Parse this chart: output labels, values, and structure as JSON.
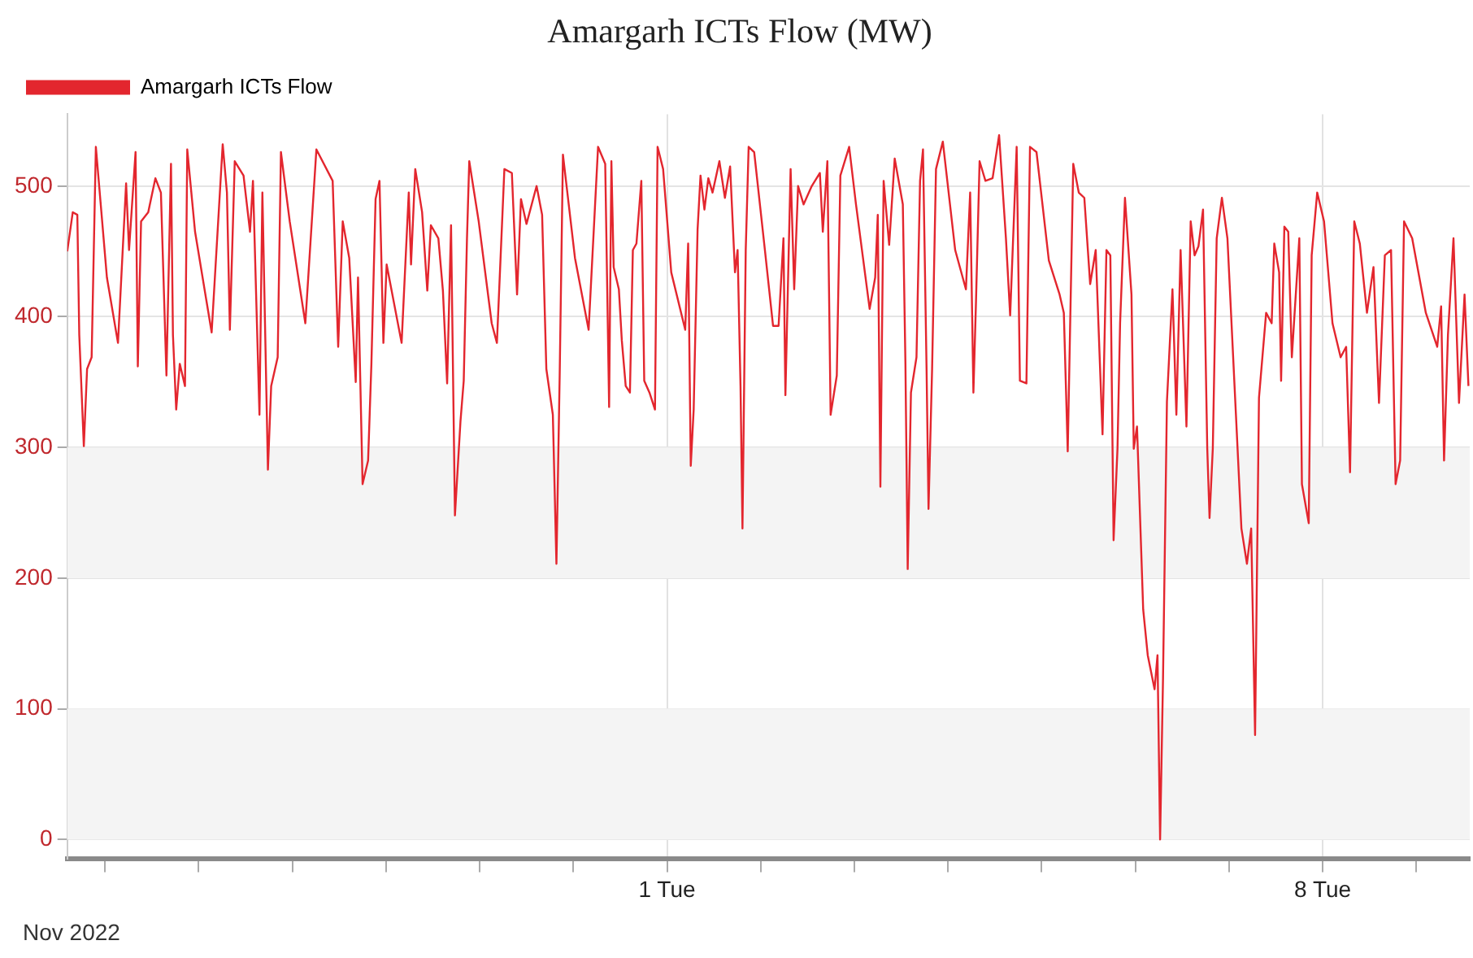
{
  "chart_data": {
    "type": "line",
    "title": "Amargarh ICTs Flow (MW)",
    "legend": "top left",
    "grid": true,
    "marker": "none",
    "line_style": "solid",
    "annotations": [
      "Nov 2022"
    ],
    "ylim": [
      -15,
      555
    ],
    "yticks": [
      0,
      100,
      200,
      300,
      400,
      500
    ],
    "xlim": [
      "2022-10-25T14:20",
      "2022-11-09T13:40"
    ],
    "xticks": [
      {
        "value": "2022-10-26",
        "label": null
      },
      {
        "value": "2022-10-27",
        "label": null
      },
      {
        "value": "2022-10-28",
        "label": null
      },
      {
        "value": "2022-10-29",
        "label": null
      },
      {
        "value": "2022-10-30",
        "label": null
      },
      {
        "value": "2022-10-31",
        "label": null
      },
      {
        "value": "2022-11-01",
        "label": "1 Tue"
      },
      {
        "value": "2022-11-02",
        "label": null
      },
      {
        "value": "2022-11-03",
        "label": null
      },
      {
        "value": "2022-11-04",
        "label": null
      },
      {
        "value": "2022-11-05",
        "label": null
      },
      {
        "value": "2022-11-06",
        "label": null
      },
      {
        "value": "2022-11-07",
        "label": null
      },
      {
        "value": "2022-11-08",
        "label": "8 Tue"
      },
      {
        "value": "2022-11-09",
        "label": null
      }
    ],
    "bands": [
      {
        "axis": "y",
        "from": 0,
        "to": 100,
        "color": "#f4f4f4"
      },
      {
        "axis": "y",
        "from": 200,
        "to": 300,
        "color": "#f4f4f4"
      }
    ],
    "series": [
      {
        "name": "Amargarh ICTs Flow",
        "color": "#e3262e",
        "x": [
          "2022-10-25T14:20",
          "2022-10-25T15:45",
          "2022-10-25T16:55",
          "2022-10-25T17:25",
          "2022-10-25T18:35",
          "2022-10-25T19:25",
          "2022-10-25T20:35",
          "2022-10-25T21:40",
          "2022-10-26T00:30",
          "2022-10-26T03:20",
          "2022-10-26T05:25",
          "2022-10-26T06:10",
          "2022-10-26T07:50",
          "2022-10-26T08:25",
          "2022-10-26T09:15",
          "2022-10-26T11:05",
          "2022-10-26T12:55",
          "2022-10-26T14:20",
          "2022-10-26T15:45",
          "2022-10-26T16:55",
          "2022-10-26T17:25",
          "2022-10-26T18:15",
          "2022-10-26T19:10",
          "2022-10-26T20:30",
          "2022-10-26T21:05",
          "2022-10-26T23:05",
          "2022-10-27T03:20",
          "2022-10-27T06:10",
          "2022-10-27T07:15",
          "2022-10-27T08:00",
          "2022-10-27T09:15",
          "2022-10-27T11:30",
          "2022-10-27T13:10",
          "2022-10-27T13:55",
          "2022-10-27T15:35",
          "2022-10-27T16:20",
          "2022-10-27T17:45",
          "2022-10-27T18:35",
          "2022-10-27T20:15",
          "2022-10-27T21:05",
          "2022-10-27T23:20",
          "2022-10-28T03:20",
          "2022-10-28T06:10",
          "2022-10-28T10:20",
          "2022-10-28T11:45",
          "2022-10-28T12:55",
          "2022-10-28T14:35",
          "2022-10-28T16:15",
          "2022-10-28T16:50",
          "2022-10-28T18:00",
          "2022-10-28T19:25",
          "2022-10-28T20:15",
          "2022-10-28T21:20",
          "2022-10-28T22:20",
          "2022-10-28T23:20",
          "2022-10-29T00:10",
          "2022-10-29T04:00",
          "2022-10-29T05:50",
          "2022-10-29T06:25",
          "2022-10-29T07:30",
          "2022-10-29T09:15",
          "2022-10-29T10:35",
          "2022-10-29T11:30",
          "2022-10-29T13:25",
          "2022-10-29T14:35",
          "2022-10-29T15:40",
          "2022-10-29T16:40",
          "2022-10-29T17:40",
          "2022-10-29T19:05",
          "2022-10-29T19:55",
          "2022-10-29T20:45",
          "2022-10-29T21:20",
          "2022-10-29T23:45",
          "2022-10-30T03:05",
          "2022-10-30T04:25",
          "2022-10-30T06:20",
          "2022-10-30T08:15",
          "2022-10-30T09:35",
          "2022-10-30T10:35",
          "2022-10-30T12:00",
          "2022-10-30T14:35",
          "2022-10-30T16:00",
          "2022-10-30T17:05",
          "2022-10-30T18:45",
          "2022-10-30T19:40",
          "2022-10-30T20:30",
          "2022-10-30T21:20",
          "2022-10-31T00:25",
          "2022-10-31T03:55",
          "2022-10-31T06:20",
          "2022-10-31T08:10",
          "2022-10-31T09:10",
          "2022-10-31T09:45",
          "2022-10-31T10:20",
          "2022-10-31T11:40",
          "2022-10-31T12:25",
          "2022-10-31T13:25",
          "2022-10-31T14:30",
          "2022-10-31T15:15",
          "2022-10-31T16:10",
          "2022-10-31T17:25",
          "2022-10-31T18:10",
          "2022-10-31T19:30",
          "2022-10-31T20:55",
          "2022-10-31T21:35",
          "2022-10-31T23:00",
          "2022-11-01T01:05",
          "2022-11-01T04:40",
          "2022-11-01T05:25",
          "2022-11-01T06:05",
          "2022-11-01T06:50",
          "2022-11-01T07:50",
          "2022-11-01T08:35",
          "2022-11-01T09:35",
          "2022-11-01T10:35",
          "2022-11-01T11:40",
          "2022-11-01T13:25",
          "2022-11-01T14:50",
          "2022-11-01T16:10",
          "2022-11-01T17:25",
          "2022-11-01T18:05",
          "2022-11-01T18:50",
          "2022-11-01T19:20",
          "2022-11-01T20:10",
          "2022-11-01T20:55",
          "2022-11-01T22:20",
          "2022-11-02T01:05",
          "2022-11-02T03:10",
          "2022-11-02T04:35",
          "2022-11-02T05:50",
          "2022-11-02T06:20",
          "2022-11-02T07:40",
          "2022-11-02T08:35",
          "2022-11-02T09:35",
          "2022-11-02T11:00",
          "2022-11-02T13:05",
          "2022-11-02T15:10",
          "2022-11-02T15:55",
          "2022-11-02T17:05",
          "2022-11-02T17:55",
          "2022-11-02T19:30",
          "2022-11-02T20:25",
          "2022-11-02T22:40",
          "2022-11-03T00:25",
          "2022-11-03T03:55",
          "2022-11-03T05:20",
          "2022-11-03T06:00",
          "2022-11-03T06:40",
          "2022-11-03T07:30",
          "2022-11-03T08:55",
          "2022-11-03T10:20",
          "2022-11-03T12:25",
          "2022-11-03T13:05",
          "2022-11-03T13:40",
          "2022-11-03T14:30",
          "2022-11-03T15:55",
          "2022-11-03T16:50",
          "2022-11-03T17:35",
          "2022-11-03T18:30",
          "2022-11-03T19:00",
          "2022-11-03T19:55",
          "2022-11-03T20:55",
          "2022-11-03T22:40",
          "2022-11-04T01:50",
          "2022-11-04T04:35",
          "2022-11-04T05:40",
          "2022-11-04T06:30",
          "2022-11-04T07:10",
          "2022-11-04T08:05",
          "2022-11-04T09:35",
          "2022-11-04T11:25",
          "2022-11-04T13:05",
          "2022-11-04T14:50",
          "2022-11-04T15:55",
          "2022-11-04T17:35",
          "2022-11-04T18:25",
          "2022-11-04T20:05",
          "2022-11-04T21:00",
          "2022-11-04T22:40",
          "2022-11-05T01:50",
          "2022-11-05T04:35",
          "2022-11-05T05:40",
          "2022-11-05T06:40",
          "2022-11-05T08:05",
          "2022-11-05T09:30",
          "2022-11-05T10:55",
          "2022-11-05T12:25",
          "2022-11-05T13:50",
          "2022-11-05T15:35",
          "2022-11-05T16:35",
          "2022-11-05T17:35",
          "2022-11-05T18:25",
          "2022-11-05T19:25",
          "2022-11-05T20:05",
          "2022-11-05T21:20",
          "2022-11-05T23:00",
          "2022-11-05T23:35",
          "2022-11-06T00:25",
          "2022-11-06T02:00",
          "2022-11-06T03:10",
          "2022-11-06T04:55",
          "2022-11-06T05:40",
          "2022-11-06T06:20",
          "2022-11-06T07:05",
          "2022-11-06T08:05",
          "2022-11-06T09:30",
          "2022-11-06T10:30",
          "2022-11-06T11:35",
          "2022-11-06T13:05",
          "2022-11-06T14:10",
          "2022-11-06T15:10",
          "2022-11-06T16:10",
          "2022-11-06T17:20",
          "2022-11-06T18:25",
          "2022-11-06T19:00",
          "2022-11-06T19:50",
          "2022-11-06T20:50",
          "2022-11-06T22:10",
          "2022-11-06T23:35",
          "2022-11-07T03:10",
          "2022-11-07T04:35",
          "2022-11-07T05:40",
          "2022-11-07T06:40",
          "2022-11-07T07:40",
          "2022-11-07T09:30",
          "2022-11-07T10:55",
          "2022-11-07T11:35",
          "2022-11-07T12:50",
          "2022-11-07T13:20",
          "2022-11-07T14:10",
          "2022-11-07T15:10",
          "2022-11-07T16:05",
          "2022-11-07T18:00",
          "2022-11-07T18:40",
          "2022-11-07T20:25",
          "2022-11-07T21:10",
          "2022-11-07T22:35",
          "2022-11-08T00:20",
          "2022-11-08T02:30",
          "2022-11-08T04:35",
          "2022-11-08T06:00",
          "2022-11-08T07:00",
          "2022-11-08T08:05",
          "2022-11-08T09:30",
          "2022-11-08T11:20",
          "2022-11-08T13:00",
          "2022-11-08T14:25",
          "2022-11-08T15:55",
          "2022-11-08T17:30",
          "2022-11-08T18:40",
          "2022-11-08T19:50",
          "2022-11-08T20:50",
          "2022-11-08T22:55",
          "2022-11-09T02:25",
          "2022-11-09T05:20",
          "2022-11-09T06:20",
          "2022-11-09T07:05",
          "2022-11-09T08:05",
          "2022-11-09T09:30",
          "2022-11-09T10:55",
          "2022-11-09T12:20",
          "2022-11-09T13:20"
        ],
        "values": [
          450,
          480,
          478,
          386,
          301,
          360,
          369,
          530,
          430,
          380,
          502,
          451,
          526,
          362,
          473,
          480,
          506,
          495,
          355,
          517,
          386,
          329,
          364,
          347,
          528,
          465,
          388,
          532,
          495,
          390,
          519,
          508,
          465,
          504,
          325,
          495,
          283,
          347,
          369,
          526,
          473,
          395,
          528,
          504,
          377,
          473,
          445,
          350,
          430,
          272,
          290,
          363,
          490,
          504,
          380,
          440,
          380,
          495,
          440,
          513,
          480,
          420,
          470,
          460,
          420,
          349,
          470,
          248,
          320,
          351,
          460,
          519,
          473,
          395,
          380,
          513,
          510,
          417,
          490,
          471,
          500,
          478,
          360,
          325,
          211,
          355,
          524,
          445,
          390,
          530,
          517,
          331,
          519,
          438,
          421,
          382,
          347,
          342,
          451,
          456,
          504,
          351,
          342,
          329,
          530,
          513,
          434,
          390,
          456,
          286,
          329,
          467,
          508,
          482,
          506,
          495,
          519,
          491,
          515,
          434,
          451,
          347,
          238,
          451,
          530,
          526,
          451,
          393,
          393,
          460,
          340,
          513,
          421,
          500,
          486,
          500,
          510,
          465,
          519,
          325,
          355,
          508,
          530,
          486,
          406,
          430,
          478,
          270,
          504,
          455,
          521,
          486,
          364,
          207,
          342,
          369,
          504,
          528,
          360,
          253,
          360,
          513,
          534,
          451,
          421,
          495,
          342,
          412,
          519,
          504,
          506,
          539,
          460,
          401,
          530,
          351,
          349,
          530,
          526,
          443,
          417,
          403,
          297,
          517,
          495,
          491,
          425,
          451,
          310,
          451,
          447,
          229,
          299,
          395,
          491,
          417,
          299,
          316,
          176,
          141,
          115,
          141,
          0,
          124,
          335,
          421,
          325,
          451,
          316,
          473,
          447,
          454,
          482,
          299,
          246,
          299,
          460,
          491,
          460,
          238,
          211,
          238,
          80,
          338,
          403,
          395,
          456,
          434,
          351,
          469,
          465,
          369,
          460,
          272,
          242,
          447,
          495,
          473,
          395,
          369,
          377,
          281,
          473,
          456,
          403,
          438,
          334,
          447,
          451,
          272,
          290,
          473,
          460,
          403,
          377,
          408,
          290,
          386,
          460,
          334,
          417,
          347
        ]
      }
    ]
  }
}
